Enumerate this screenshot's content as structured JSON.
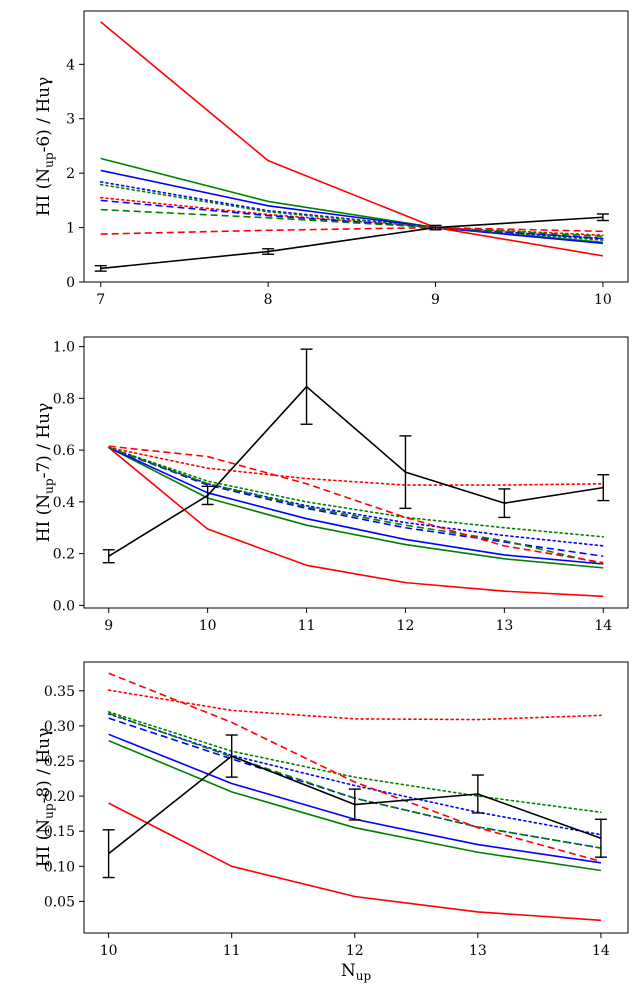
{
  "chart_data": [
    {
      "type": "line",
      "ylabel_main": "HI (N",
      "ylabel_sub": "up",
      "ylabel_rest": "-6) / Huγ",
      "xlabel": "",
      "xlabel_sub": "",
      "x": [
        7,
        8,
        9,
        10
      ],
      "xticks": [
        "7",
        "8",
        "9",
        "10"
      ],
      "yticks": [
        "0",
        "1",
        "2",
        "3",
        "4"
      ],
      "xlim": [
        6.9,
        10.15
      ],
      "ylim": [
        0,
        4.98
      ],
      "series": [
        {
          "name": "red-solid",
          "color": "#ff0000",
          "dash": "solid",
          "values": [
            4.78,
            2.23,
            1.0,
            0.48
          ]
        },
        {
          "name": "green-solid",
          "color": "#008000",
          "dash": "solid",
          "values": [
            2.27,
            1.48,
            1.0,
            0.73
          ]
        },
        {
          "name": "blue-solid",
          "color": "#0000ff",
          "dash": "solid",
          "values": [
            2.05,
            1.4,
            1.0,
            0.71
          ]
        },
        {
          "name": "blue-dotted",
          "color": "#0000ff",
          "dash": "dotted",
          "values": [
            1.84,
            1.31,
            1.0,
            0.8
          ]
        },
        {
          "name": "green-dotted",
          "color": "#008000",
          "dash": "dotted",
          "values": [
            1.79,
            1.29,
            1.0,
            0.77
          ]
        },
        {
          "name": "red-dotted",
          "color": "#ff0000",
          "dash": "dotted",
          "values": [
            1.55,
            1.24,
            1.0,
            0.86
          ]
        },
        {
          "name": "blue-dashed",
          "color": "#0000ff",
          "dash": "dashed",
          "values": [
            1.5,
            1.22,
            1.0,
            0.8
          ]
        },
        {
          "name": "green-dashed",
          "color": "#008000",
          "dash": "dashed",
          "values": [
            1.33,
            1.18,
            1.0,
            0.84
          ]
        },
        {
          "name": "red-dashed",
          "color": "#ff0000",
          "dash": "dashed",
          "values": [
            0.88,
            0.95,
            1.0,
            0.93
          ]
        },
        {
          "name": "observed",
          "color": "#000000",
          "dash": "solid",
          "values": [
            0.25,
            0.56,
            1.0,
            1.19
          ],
          "errors": [
            0.05,
            0.05,
            0.04,
            0.06
          ]
        }
      ]
    },
    {
      "type": "line",
      "ylabel_main": "HI (N",
      "ylabel_sub": "up",
      "ylabel_rest": "-7) / Huγ",
      "xlabel": "",
      "xlabel_sub": "",
      "x": [
        9,
        10,
        11,
        12,
        13,
        14
      ],
      "xticks": [
        "9",
        "10",
        "11",
        "12",
        "13",
        "14"
      ],
      "yticks": [
        "0.0",
        "0.2",
        "0.4",
        "0.6",
        "0.8",
        "1.0"
      ],
      "xlim": [
        8.75,
        14.25
      ],
      "ylim": [
        -0.01,
        1.037
      ],
      "series": [
        {
          "name": "red-solid",
          "color": "#ff0000",
          "dash": "solid",
          "values": [
            0.61,
            0.295,
            0.155,
            0.088,
            0.055,
            0.035
          ]
        },
        {
          "name": "green-solid",
          "color": "#008000",
          "dash": "solid",
          "values": [
            0.61,
            0.415,
            0.31,
            0.235,
            0.18,
            0.145
          ]
        },
        {
          "name": "blue-solid",
          "color": "#0000ff",
          "dash": "solid",
          "values": [
            0.61,
            0.435,
            0.335,
            0.255,
            0.195,
            0.16
          ]
        },
        {
          "name": "green-dotted",
          "color": "#008000",
          "dash": "dotted",
          "values": [
            0.61,
            0.48,
            0.4,
            0.34,
            0.3,
            0.265
          ]
        },
        {
          "name": "blue-dotted",
          "color": "#0000ff",
          "dash": "dotted",
          "values": [
            0.61,
            0.47,
            0.385,
            0.32,
            0.27,
            0.23
          ]
        },
        {
          "name": "red-dotted",
          "color": "#ff0000",
          "dash": "dotted",
          "values": [
            0.61,
            0.53,
            0.49,
            0.465,
            0.465,
            0.47
          ]
        },
        {
          "name": "blue-dashed",
          "color": "#0000ff",
          "dash": "dashed",
          "values": [
            0.61,
            0.465,
            0.375,
            0.3,
            0.245,
            0.19
          ]
        },
        {
          "name": "green-dashed",
          "color": "#008000",
          "dash": "dashed",
          "values": [
            0.61,
            0.47,
            0.38,
            0.31,
            0.25,
            0.16
          ]
        },
        {
          "name": "red-dashed",
          "color": "#ff0000",
          "dash": "dashed",
          "values": [
            0.615,
            0.575,
            0.47,
            0.34,
            0.23,
            0.165
          ]
        },
        {
          "name": "observed",
          "color": "#000000",
          "dash": "solid",
          "values": [
            0.19,
            0.425,
            0.845,
            0.515,
            0.395,
            0.455
          ],
          "errors": [
            0.025,
            0.035,
            0.145,
            0.14,
            0.055,
            0.05
          ]
        }
      ]
    },
    {
      "type": "line",
      "ylabel_main": "HI (N",
      "ylabel_sub": "up",
      "ylabel_rest": "-8) / Huγ",
      "xlabel": "N",
      "xlabel_sub": "up",
      "x": [
        10,
        11,
        12,
        13,
        14
      ],
      "xticks": [
        "10",
        "11",
        "12",
        "13",
        "14"
      ],
      "yticks": [
        "0.05",
        "0.10",
        "0.15",
        "0.20",
        "0.25",
        "0.30",
        "0.35"
      ],
      "xlim": [
        9.8,
        14.22
      ],
      "ylim": [
        0.005,
        0.391
      ],
      "series": [
        {
          "name": "red-solid",
          "color": "#ff0000",
          "dash": "solid",
          "values": [
            0.19,
            0.1,
            0.057,
            0.035,
            0.023
          ]
        },
        {
          "name": "green-solid",
          "color": "#008000",
          "dash": "solid",
          "values": [
            0.279,
            0.206,
            0.155,
            0.12,
            0.094
          ]
        },
        {
          "name": "blue-solid",
          "color": "#0000ff",
          "dash": "solid",
          "values": [
            0.288,
            0.218,
            0.167,
            0.131,
            0.105
          ]
        },
        {
          "name": "green-dotted",
          "color": "#008000",
          "dash": "dotted",
          "values": [
            0.32,
            0.264,
            0.227,
            0.2,
            0.177
          ]
        },
        {
          "name": "blue-dotted",
          "color": "#0000ff",
          "dash": "dotted",
          "values": [
            0.317,
            0.258,
            0.215,
            0.177,
            0.145
          ]
        },
        {
          "name": "red-dotted",
          "color": "#ff0000",
          "dash": "dotted",
          "values": [
            0.351,
            0.322,
            0.31,
            0.309,
            0.315
          ]
        },
        {
          "name": "blue-dashed",
          "color": "#0000ff",
          "dash": "dashed",
          "values": [
            0.311,
            0.253,
            0.197,
            0.156,
            0.126
          ]
        },
        {
          "name": "green-dashed",
          "color": "#008000",
          "dash": "dashed",
          "values": [
            0.318,
            0.256,
            0.197,
            0.156,
            0.126
          ]
        },
        {
          "name": "red-dashed",
          "color": "#ff0000",
          "dash": "dashed",
          "values": [
            0.375,
            0.305,
            0.22,
            0.155,
            0.107
          ]
        },
        {
          "name": "observed",
          "color": "#000000",
          "dash": "solid",
          "values": [
            0.118,
            0.257,
            0.188,
            0.203,
            0.14
          ],
          "errors": [
            0.034,
            0.03,
            0.022,
            0.027,
            0.027
          ]
        }
      ]
    }
  ]
}
